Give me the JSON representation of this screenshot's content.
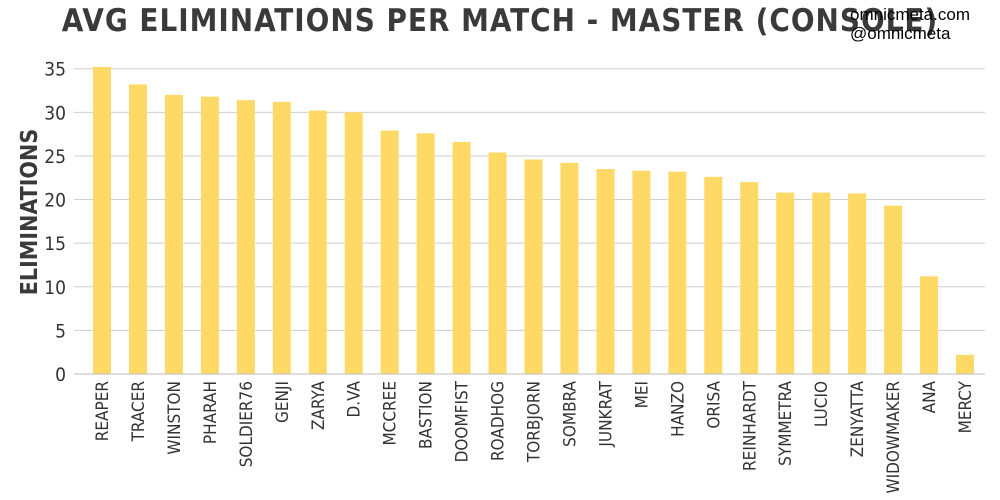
{
  "header": {
    "title": "AVG ELIMINATIONS PER MATCH - MASTER (CONSOLE)",
    "brand_site": "omnicmeta.com",
    "brand_handle": "@omnicmeta"
  },
  "colors": {
    "bar": "#FFD966",
    "background": "#FFFFFF"
  },
  "chart_data": {
    "type": "bar",
    "title": "AVG ELIMINATIONS PER MATCH - MASTER (CONSOLE)",
    "xlabel": "",
    "ylabel": "ELIMINATIONS",
    "ylim": [
      0,
      36
    ],
    "yticks": [
      0,
      5,
      10,
      15,
      20,
      25,
      30,
      35
    ],
    "grid": true,
    "categories": [
      "REAPER",
      "TRACER",
      "WINSTON",
      "PHARAH",
      "SOLDIER76",
      "GENJI",
      "ZARYA",
      "D.VA",
      "MCCREE",
      "BASTION",
      "DOOMFIST",
      "ROADHOG",
      "TORBJORN",
      "SOMBRA",
      "JUNKRAT",
      "MEI",
      "HANZO",
      "ORISA",
      "REINHARDT",
      "SYMMETRA",
      "LUCIO",
      "ZENYATTA",
      "WIDOWMAKER",
      "ANA",
      "MERCY"
    ],
    "values": [
      35.2,
      33.2,
      32.0,
      31.8,
      31.4,
      31.2,
      30.2,
      30.0,
      27.9,
      27.6,
      26.6,
      25.4,
      24.6,
      24.2,
      23.5,
      23.3,
      23.2,
      22.6,
      22.0,
      20.8,
      20.8,
      20.7,
      19.3,
      11.2,
      2.2
    ]
  }
}
